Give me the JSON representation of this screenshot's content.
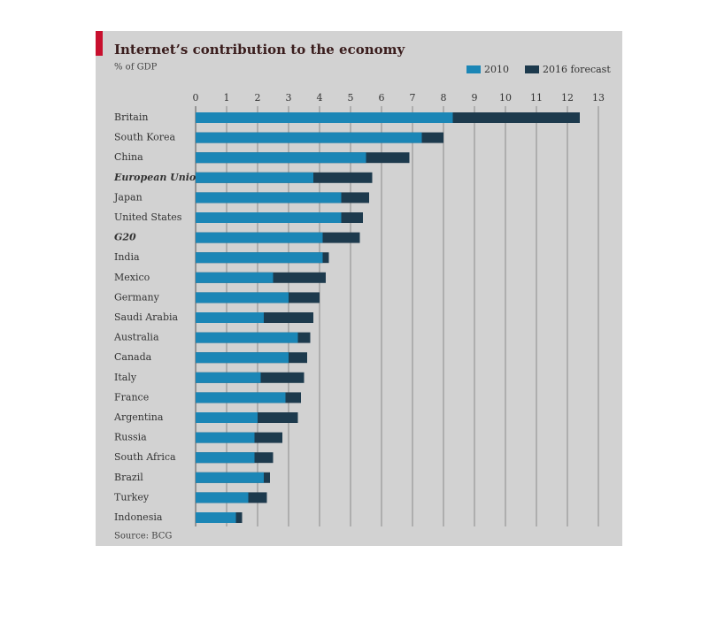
{
  "chart_data": {
    "type": "bar",
    "orientation": "horizontal",
    "title": "Internet’s contribution to the economy",
    "subtitle": "% of GDP",
    "source": "Source: BCG",
    "categories": [
      "Britain",
      "South Korea",
      "China",
      "European Union",
      "Japan",
      "United States",
      "G20",
      "India",
      "Mexico",
      "Germany",
      "Saudi Arabia",
      "Australia",
      "Canada",
      "Italy",
      "France",
      "Argentina",
      "Russia",
      "South Africa",
      "Brazil",
      "Turkey",
      "Indonesia"
    ],
    "highlight": [
      "European Union",
      "G20"
    ],
    "series": [
      {
        "name": "2010",
        "color": "#1b86b6",
        "values": [
          8.3,
          7.3,
          5.5,
          3.8,
          4.7,
          4.7,
          4.1,
          4.1,
          2.5,
          3.0,
          2.2,
          3.3,
          3.0,
          2.1,
          2.9,
          2.0,
          1.9,
          1.9,
          2.2,
          1.7,
          1.3
        ]
      },
      {
        "name": "2016 forecast",
        "color": "#1d3a4d",
        "values": [
          12.4,
          8.0,
          6.9,
          5.7,
          5.6,
          5.4,
          5.3,
          4.3,
          4.2,
          4.0,
          3.8,
          3.7,
          3.6,
          3.5,
          3.4,
          3.3,
          2.8,
          2.5,
          2.4,
          2.3,
          1.5
        ]
      }
    ],
    "xlim": [
      0,
      13
    ],
    "xticks": [
      0,
      1,
      2,
      3,
      4,
      5,
      6,
      7,
      8,
      9,
      10,
      11,
      12,
      13
    ],
    "grid": true,
    "legend": "top-right"
  }
}
